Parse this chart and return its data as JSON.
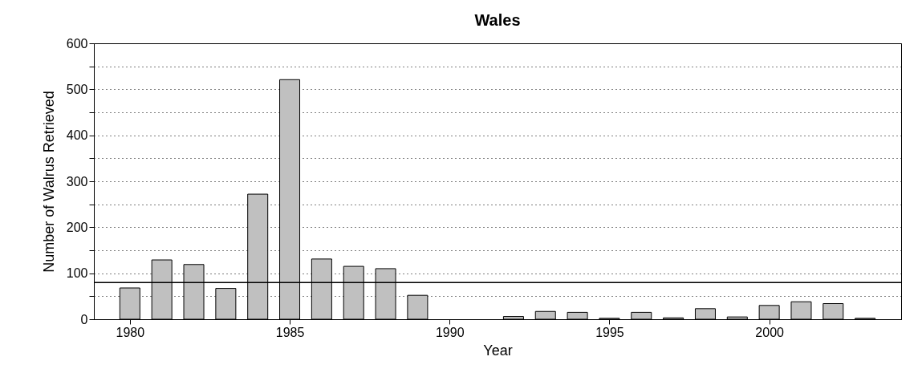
{
  "chart_data": {
    "type": "bar",
    "title": "Wales",
    "xlabel": "Year",
    "ylabel": "Number of Walrus Retrieved",
    "x": [
      1980,
      1981,
      1982,
      1983,
      1984,
      1985,
      1986,
      1987,
      1988,
      1989,
      1990,
      1991,
      1992,
      1993,
      1994,
      1995,
      1996,
      1997,
      1998,
      1999,
      2000,
      2001,
      2002,
      2003
    ],
    "values": [
      68,
      129,
      119,
      67,
      272,
      521,
      131,
      115,
      110,
      52,
      0,
      0,
      6,
      17,
      15,
      2,
      15,
      3,
      23,
      5,
      30,
      38,
      34,
      2
    ],
    "color": "#c0c0c0",
    "xlim": [
      1979,
      2004
    ],
    "xticks": [
      1980,
      1985,
      1990,
      1995,
      2000
    ],
    "ylim": [
      0,
      600
    ],
    "yticks": [
      0,
      {
        "value": 50,
        "label": null
      },
      100,
      {
        "value": 150,
        "label": null
      },
      200,
      {
        "value": 250,
        "label": null
      },
      300,
      {
        "value": 350,
        "label": null
      },
      400,
      {
        "value": 450,
        "label": null
      },
      500,
      {
        "value": 550,
        "label": null
      },
      600
    ],
    "grid": "y",
    "ref_lines": [
      {
        "axis": "y",
        "value": 80,
        "color": "#000000",
        "line_style": "solid"
      }
    ]
  }
}
